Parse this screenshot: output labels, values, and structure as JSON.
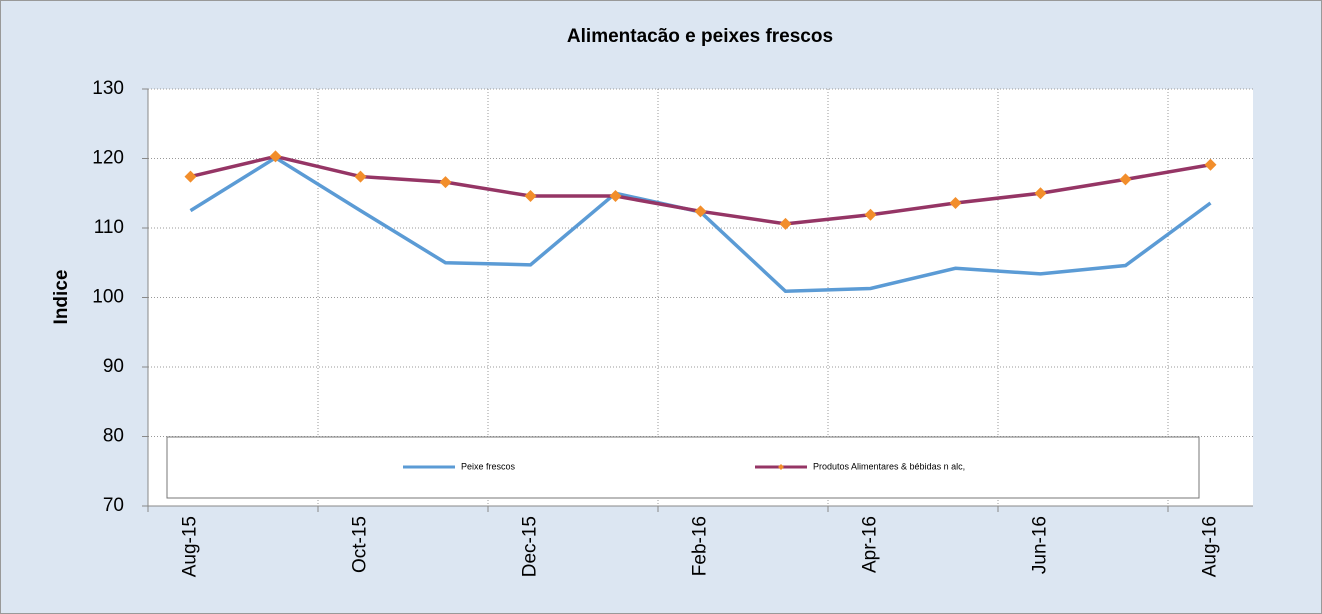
{
  "chart_data": {
    "type": "line",
    "title": "Alimentacão e peixes frescos",
    "y_label": "Indice",
    "categories": [
      "Aug-15",
      null,
      "Oct-15",
      null,
      "Dec-15",
      null,
      "Feb-16",
      null,
      "Apr-16",
      null,
      "Jun-16",
      null,
      "Aug-16"
    ],
    "series": [
      {
        "name": "Peixe  frescos",
        "color": "#5b9bd5",
        "values": [
          112.5,
          120.1,
          112.5,
          105.0,
          104.7,
          115.0,
          112.3,
          100.9,
          101.3,
          104.2,
          103.4,
          104.6,
          113.6
        ]
      },
      {
        "name": "Produtos Alimentares & bébidas n alc,",
        "color": "#953565",
        "marker_color": "#f28e2b",
        "marker": "diamond",
        "values": [
          117.4,
          120.3,
          117.4,
          116.6,
          114.6,
          114.6,
          112.4,
          110.6,
          111.9,
          113.6,
          115.0,
          117.0,
          119.1
        ]
      }
    ],
    "ylim": [
      70,
      130
    ],
    "yticks": [
      70,
      80,
      90,
      100,
      110,
      120,
      130
    ],
    "grid": true,
    "legend": "bottom"
  }
}
